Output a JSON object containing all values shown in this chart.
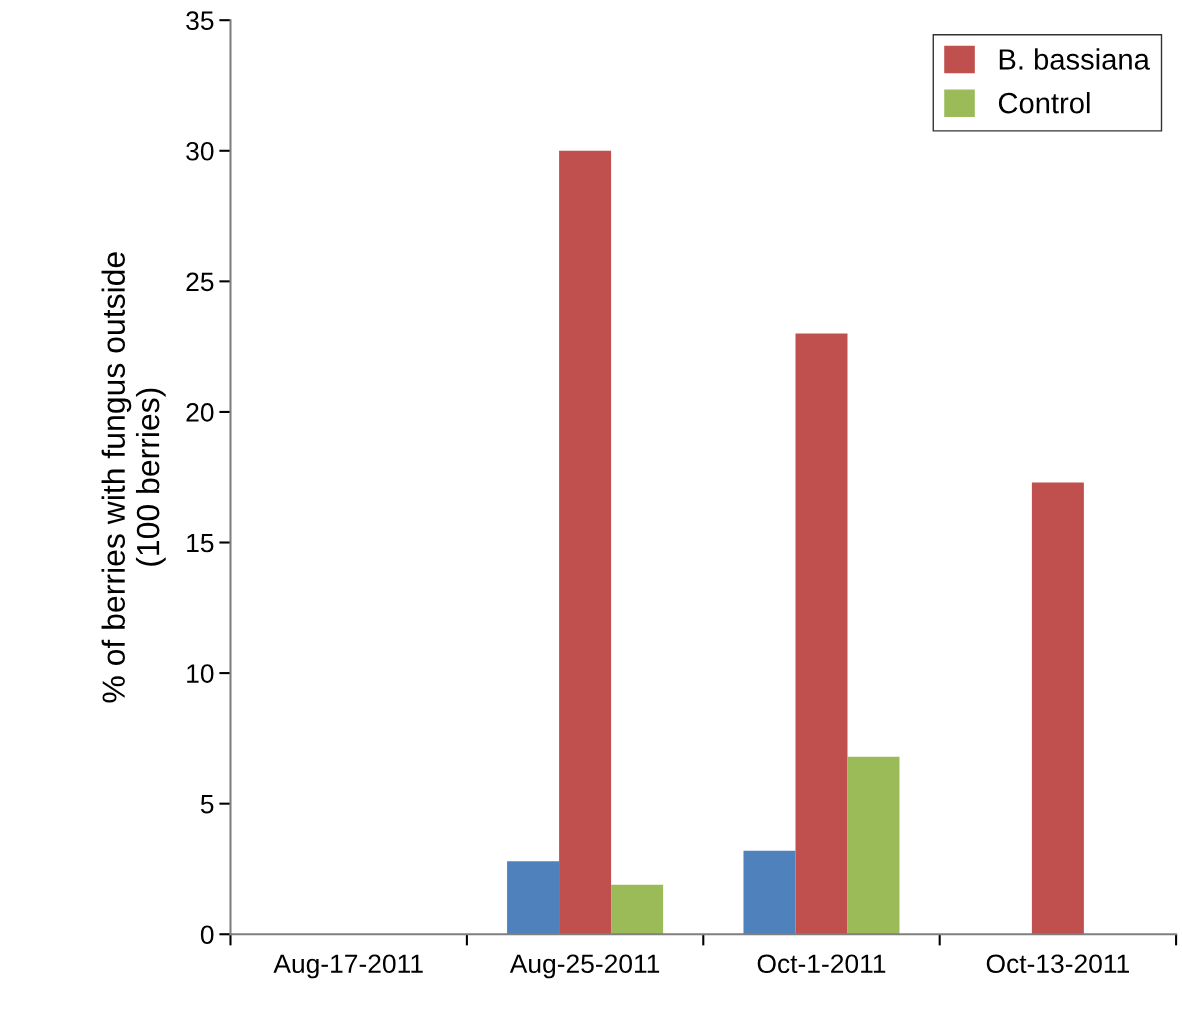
{
  "chart_data": {
    "type": "bar",
    "ylabel": "% of berries with fungus outside\n(100 berries)",
    "categories": [
      "Aug-17-2011",
      "Aug-25-2011",
      "Oct-1-2011",
      "Oct-13-2011"
    ],
    "series": [
      {
        "color": "#4f81bd",
        "values": [
          0,
          2.8,
          3.2,
          0
        ]
      },
      {
        "name": "B. bassiana",
        "color": "#c0504d",
        "values": [
          0,
          30,
          23,
          17.3
        ]
      },
      {
        "name": "Control",
        "color": "#9bbb59",
        "values": [
          0,
          1.9,
          6.8,
          0
        ]
      }
    ],
    "ylim": [
      0,
      35
    ],
    "yticks": [
      0,
      5,
      10,
      15,
      20,
      25,
      30,
      35
    ],
    "grid": false,
    "legend": "top right"
  }
}
